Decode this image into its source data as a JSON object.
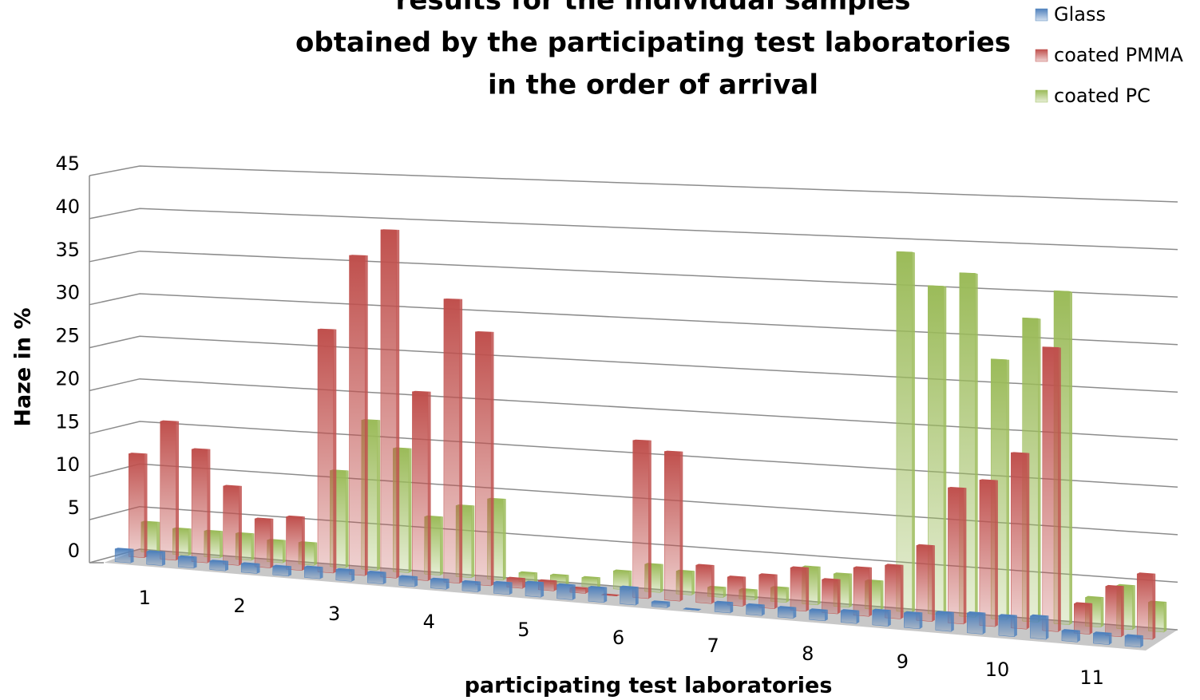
{
  "chart_data": {
    "type": "bar3d",
    "title_lines": [
      "results for the individual samples",
      "obtained by the participating test laboratories",
      "in the order of arrival"
    ],
    "y_label": "Haze in %",
    "x_label": "participating test laboratories",
    "categories": [
      "1",
      "2",
      "3",
      "4",
      "5",
      "6",
      "7",
      "8",
      "9",
      "10",
      "11"
    ],
    "series": [
      {
        "name": "Glass",
        "color": "#4f81bd",
        "values": [
          [
            1.5,
            1.5,
            1.2
          ],
          [
            1,
            1,
            1
          ],
          [
            1.2,
            1.2,
            1.2
          ],
          [
            1,
            1,
            1
          ],
          [
            1.2,
            1.5,
            1.5
          ],
          [
            1.5,
            1.8,
            0.5
          ],
          [
            0,
            1,
            1
          ],
          [
            1,
            1,
            1.2
          ],
          [
            1.5,
            1.5,
            1.8
          ],
          [
            2,
            2,
            2.2
          ],
          [
            1,
            1,
            1
          ]
        ]
      },
      {
        "name": "coated PMMA",
        "color": "#c0504d",
        "values": [
          [
            12,
            16,
            13
          ],
          [
            9,
            5.5,
            6
          ],
          [
            27.5,
            36,
            39
          ],
          [
            21,
            31.5,
            28
          ],
          [
            1,
            1,
            0.5
          ],
          [
            0,
            17,
            16
          ],
          [
            4,
            3,
            3.5
          ],
          [
            4.5,
            3.5,
            5
          ],
          [
            5.5,
            7.8,
            14
          ],
          [
            15,
            18,
            29
          ],
          [
            3,
            5,
            6.5
          ]
        ]
      },
      {
        "name": "coated PC",
        "color": "#9bbb59",
        "values": [
          [
            3.5,
            3,
            3
          ],
          [
            3,
            2.5,
            2.5
          ],
          [
            11,
            17,
            14
          ],
          [
            6.5,
            8,
            9
          ],
          [
            1,
            1,
            1
          ],
          [
            2,
            3,
            2.5
          ],
          [
            1,
            1,
            1.5
          ],
          [
            4,
            3.5,
            3
          ],
          [
            38.5,
            35,
            36.5
          ],
          [
            27.5,
            32,
            35
          ],
          [
            3,
            4.5,
            3
          ]
        ]
      }
    ],
    "ylim": [
      0,
      45
    ],
    "yticks": [
      0,
      5,
      10,
      15,
      20,
      25,
      30,
      35,
      40,
      45
    ],
    "grid": true,
    "legend": "top-right"
  }
}
